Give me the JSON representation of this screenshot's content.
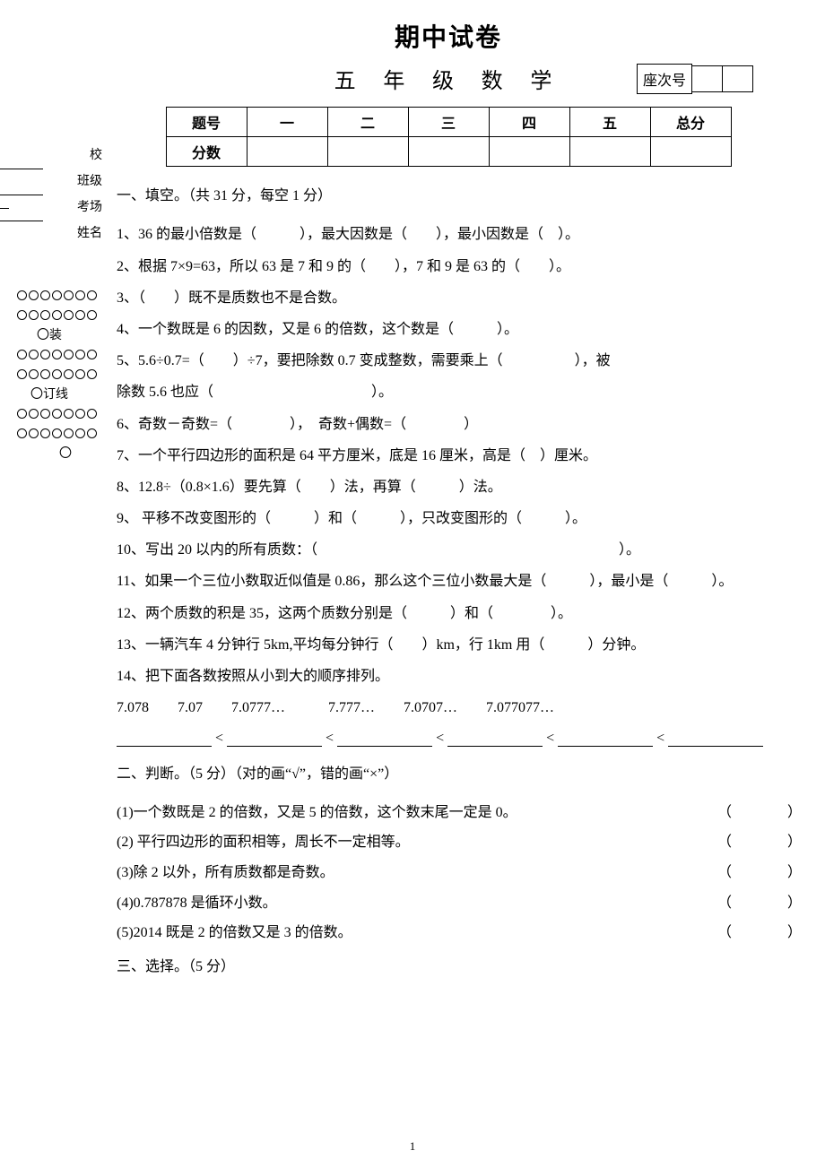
{
  "title": "期中试卷",
  "subtitle": "五 年 级 数 学",
  "seat_label": "座次号",
  "left_info": {
    "school": "校",
    "class": "班级",
    "room": "考场",
    "name": "姓名"
  },
  "binding": {
    "zhuang": "〇装",
    "ding": "〇订线"
  },
  "score_table": {
    "row_labels": [
      "题号",
      "分数"
    ],
    "cols": [
      "一",
      "二",
      "三",
      "四",
      "五",
      "总分"
    ]
  },
  "section1_head": "一、填空。（共 31 分，每空 1 分）",
  "q1": "1、36 的最小倍数是（　　　），最大因数是（　　），最小因数是（　）。",
  "q2": "2、根据 7×9=63，所以 63 是 7 和 9 的（　　），7 和 9 是 63 的（　　）。",
  "q3": "3、（　　）既不是质数也不是合数。",
  "q4": "4、一个数既是 6 的因数，又是 6 的倍数，这个数是（　　　）。",
  "q5a": "5、5.6÷0.7=（　　）÷7，要把除数 0.7 变成整数，需要乘上（　　　　　），被",
  "q5b": "除数 5.6 也应（　　　　　　　　　　　）。",
  "q6": "6、奇数－奇数=（　　　　），　奇数+偶数=（　　　　）",
  "q7": "7、一个平行四边形的面积是 64 平方厘米，底是 16 厘米，高是（　）厘米。",
  "q8": "8、12.8÷（0.8×1.6）要先算（　　）法，再算（　　　）法。",
  "q9": "9、 平移不改变图形的（　　　）和（　　　），只改变图形的（　　　）。",
  "q10": "10、写出 20 以内的所有质数：（　　　　　　　　　　　　　　　　　　　　　）。",
  "q11": "11、如果一个三位小数取近似值是 0.86，那么这个三位小数最大是（　　　），最小是（　　　）。",
  "q12": "12、两个质数的积是 35，这两个质数分别是（　　　）和（　　　　）。",
  "q13": "13、一辆汽车 4 分钟行 5km,平均每分钟行（　　）km，行 1km 用（　　　）分钟。",
  "q14": "14、把下面各数按照从小到大的顺序排列。",
  "q14_nums": "7.078　　7.07　　7.0777…　　　7.777…　　7.0707…　　7.077077…",
  "section2_head": "二、判断。（5 分）（对的画“√”，错的画“×”）",
  "j1": "(1)一个数既是 2 的倍数，又是 5 的倍数，这个数末尾一定是 0。",
  "j2": "(2) 平行四边形的面积相等，周长不一定相等。",
  "j3": "(3)除 2 以外，所有质数都是奇数。",
  "j4": "(4)0.787878 是循环小数。",
  "j5": "(5)2014 既是 2 的倍数又是 3 的倍数。",
  "section3_head": "三、选择。（5 分）",
  "page_num": "1",
  "paren": "（　　）"
}
